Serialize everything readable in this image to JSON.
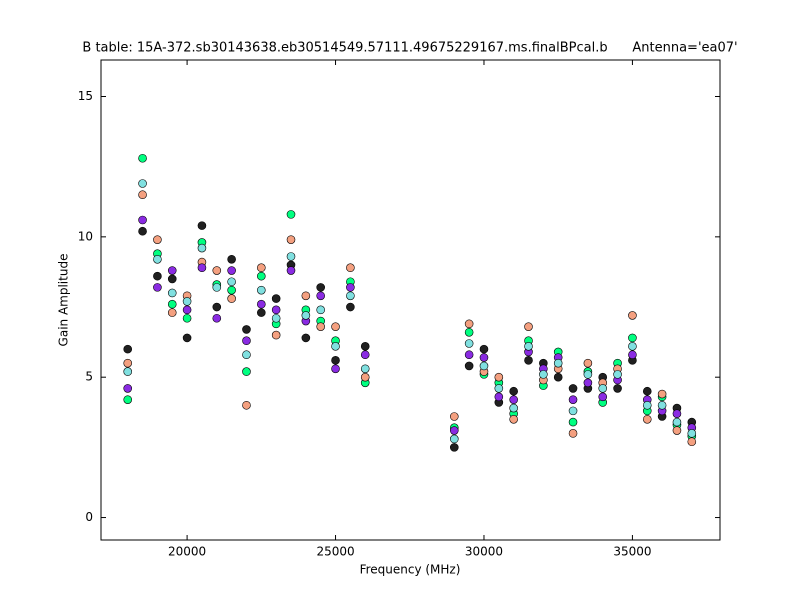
{
  "chart_data": {
    "type": "scatter",
    "title": "B table: 15A-372.sb30143638.eb30514549.57111.49675229167.ms.finalBPcal.b      Antenna='ea07'",
    "x_label": "Frequency (MHz)",
    "y_label": "Gain Amplitude",
    "x": [
      18000,
      18500,
      19000,
      19500,
      20000,
      20500,
      21000,
      21500,
      22000,
      22500,
      23000,
      23500,
      24000,
      24500,
      25000,
      25500,
      26000,
      29000,
      29500,
      30000,
      30500,
      31000,
      31500,
      32000,
      32500,
      33000,
      33500,
      34000,
      34500,
      35000,
      35500,
      36000,
      36500,
      37000
    ],
    "series": [
      {
        "color": "#00ff80",
        "values": [
          4.2,
          12.8,
          9.4,
          7.6,
          7.1,
          9.8,
          8.3,
          8.1,
          5.2,
          8.6,
          6.9,
          10.8,
          7.4,
          7.0,
          6.3,
          8.4,
          4.8,
          3.2,
          6.6,
          5.1,
          4.8,
          3.7,
          6.3,
          4.7,
          5.9,
          3.4,
          5.2,
          4.1,
          5.5,
          6.4,
          3.8,
          4.3,
          3.3,
          2.9
        ]
      },
      {
        "color": "#202020",
        "values": [
          6.0,
          10.2,
          8.6,
          8.5,
          6.4,
          10.4,
          7.5,
          9.2,
          6.7,
          7.3,
          7.8,
          9.0,
          6.4,
          8.2,
          5.6,
          7.5,
          6.1,
          2.5,
          5.4,
          6.0,
          4.1,
          4.5,
          5.6,
          5.5,
          5.0,
          4.6,
          4.6,
          5.0,
          4.6,
          5.6,
          4.5,
          3.6,
          3.9,
          3.4
        ]
      },
      {
        "color": "#f4a080",
        "values": [
          5.5,
          11.5,
          9.9,
          7.3,
          7.9,
          9.1,
          8.8,
          7.8,
          4.0,
          8.9,
          6.5,
          9.9,
          7.9,
          6.8,
          6.8,
          8.9,
          5.0,
          3.6,
          6.9,
          5.2,
          5.0,
          3.5,
          6.8,
          4.9,
          5.3,
          3.0,
          5.5,
          4.8,
          5.3,
          7.2,
          3.5,
          4.4,
          3.1,
          2.7
        ]
      },
      {
        "color": "#8a2be2",
        "values": [
          4.6,
          10.6,
          8.2,
          8.8,
          7.4,
          8.9,
          7.1,
          8.8,
          6.3,
          7.6,
          7.4,
          8.8,
          7.0,
          7.9,
          5.3,
          8.2,
          5.8,
          3.1,
          5.8,
          5.7,
          4.3,
          4.2,
          5.9,
          5.3,
          5.7,
          4.2,
          4.8,
          4.3,
          4.9,
          5.8,
          4.2,
          3.8,
          3.7,
          3.2
        ]
      },
      {
        "color": "#80e0e0",
        "values": [
          5.2,
          11.9,
          9.2,
          8.0,
          7.7,
          9.6,
          8.2,
          8.4,
          5.8,
          8.1,
          7.1,
          9.3,
          7.2,
          7.4,
          6.1,
          7.9,
          5.3,
          2.8,
          6.2,
          5.4,
          4.6,
          3.9,
          6.1,
          5.1,
          5.5,
          3.8,
          5.1,
          4.6,
          5.1,
          6.1,
          4.0,
          4.0,
          3.4,
          3.0
        ]
      }
    ],
    "xlim": [
      17100,
      37950
    ],
    "ylim": [
      -0.8,
      16.3
    ],
    "xticks": [
      20000,
      25000,
      30000,
      35000
    ],
    "yticks": [
      0,
      5,
      10,
      15
    ]
  }
}
